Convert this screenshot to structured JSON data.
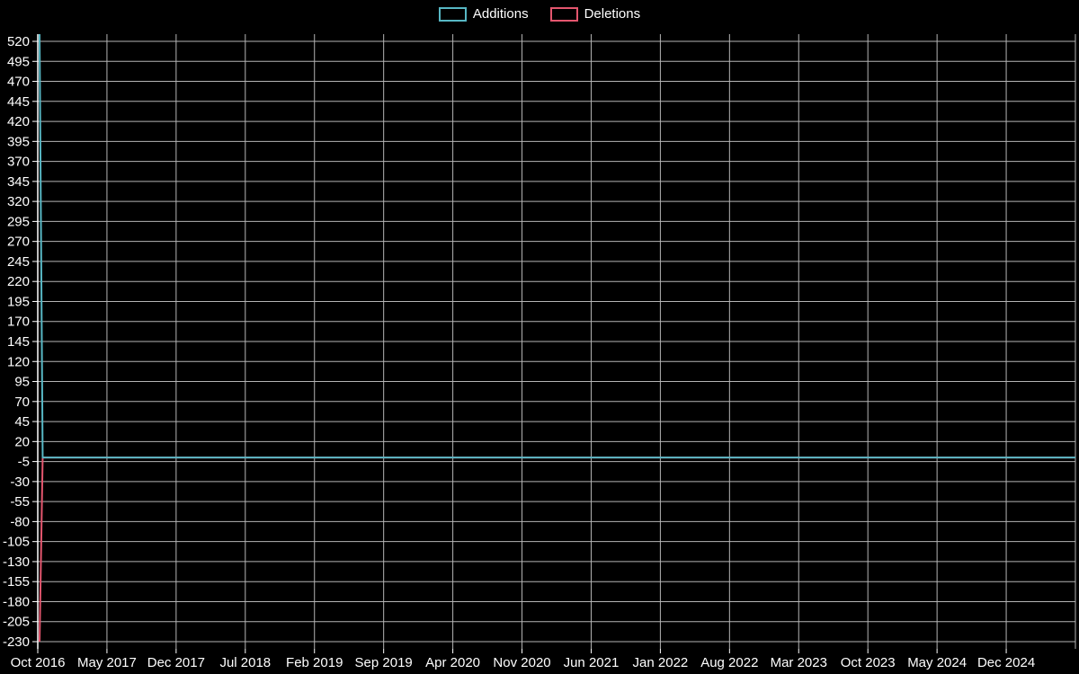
{
  "page": {
    "background": "#000000"
  },
  "legend": {
    "items": [
      {
        "label": "Additions",
        "color": "#57b7c4"
      },
      {
        "label": "Deletions",
        "color": "#e4566e"
      }
    ]
  },
  "chart_data": {
    "type": "line",
    "title": "",
    "xlabel": "",
    "ylabel": "",
    "legend_position": "top-center",
    "grid": true,
    "background": "#000000",
    "text_color": "#ffffff",
    "grid_color": "#b4b4b4",
    "axis_color": "#ffffff",
    "x_ticks": [
      "Oct 2016",
      "May 2017",
      "Dec 2017",
      "Jul 2018",
      "Feb 2019",
      "Sep 2019",
      "Apr 2020",
      "Nov 2020",
      "Jun 2021",
      "Jan 2022",
      "Aug 2022",
      "Mar 2023",
      "Oct 2023",
      "May 2024",
      "Dec 2024"
    ],
    "y_ticks": [
      520,
      495,
      470,
      445,
      420,
      395,
      370,
      345,
      320,
      295,
      270,
      245,
      220,
      195,
      170,
      145,
      120,
      95,
      70,
      45,
      20,
      -5,
      -30,
      -55,
      -80,
      -105,
      -130,
      -155,
      -180,
      -205,
      -230
    ],
    "ylim": [
      -255,
      530
    ],
    "x_unit": "fraction of x-range (weekly data, Oct 2016 through Dec 2024)",
    "series": [
      {
        "name": "Additions",
        "color": "#57b7c4",
        "summary": "~530 additions in the first week (Oct 2016, spike clipped at chart top), ~0 for all later weeks",
        "points": [
          [
            0,
            530
          ],
          [
            0.003,
            0
          ],
          [
            1,
            0
          ]
        ]
      },
      {
        "name": "Deletions",
        "color": "#e4566e",
        "summary": "~-230 deletions in the first week (Oct 2016), ~0 for all later weeks",
        "points": [
          [
            0,
            -230
          ],
          [
            0.003,
            0
          ],
          [
            1,
            0
          ]
        ]
      }
    ]
  }
}
